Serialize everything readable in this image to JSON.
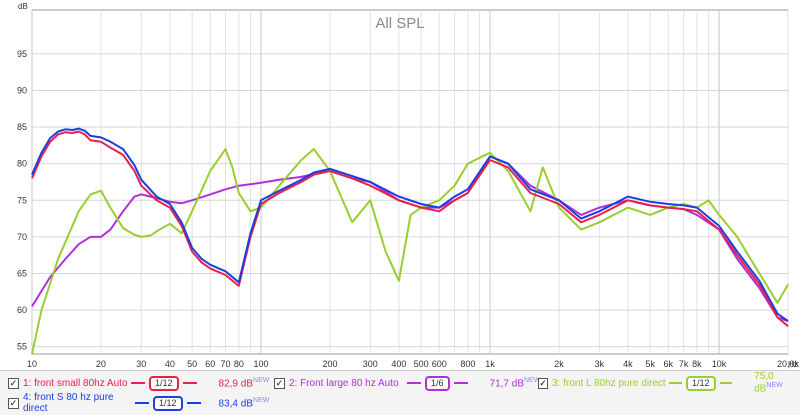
{
  "chart_data": {
    "type": "line",
    "title": "All SPL",
    "ylabel": "dB",
    "xunit": "Hz",
    "xscale": "log",
    "xlim": [
      10,
      20000
    ],
    "ylim": [
      54,
      101
    ],
    "grid": true,
    "xticks": [
      {
        "v": 10,
        "label": "10"
      },
      {
        "v": 20,
        "label": "20"
      },
      {
        "v": 30,
        "label": "30"
      },
      {
        "v": 40,
        "label": "40"
      },
      {
        "v": 50,
        "label": "50"
      },
      {
        "v": 60,
        "label": "60"
      },
      {
        "v": 70,
        "label": "70"
      },
      {
        "v": 80,
        "label": "80"
      },
      {
        "v": 100,
        "label": "100"
      },
      {
        "v": 200,
        "label": "200"
      },
      {
        "v": 300,
        "label": "300"
      },
      {
        "v": 400,
        "label": "400"
      },
      {
        "v": 500,
        "label": "500"
      },
      {
        "v": 600,
        "label": "600"
      },
      {
        "v": 800,
        "label": "800"
      },
      {
        "v": 1000,
        "label": "1k"
      },
      {
        "v": 2000,
        "label": "2k"
      },
      {
        "v": 3000,
        "label": "3k"
      },
      {
        "v": 4000,
        "label": "4k"
      },
      {
        "v": 5000,
        "label": "5k"
      },
      {
        "v": 6000,
        "label": "6k"
      },
      {
        "v": 7000,
        "label": "7k"
      },
      {
        "v": 8000,
        "label": "8k"
      },
      {
        "v": 10000,
        "label": "10k"
      },
      {
        "v": 20000,
        "label": "20,0k"
      }
    ],
    "yticks": [
      55,
      60,
      65,
      70,
      75,
      80,
      85,
      90,
      95
    ],
    "series": [
      {
        "name": "front large 80 hz Auto",
        "color": "#b030d8",
        "x": [
          10,
          12,
          14,
          16,
          18,
          20,
          22,
          25,
          28,
          30,
          35,
          40,
          45,
          50,
          60,
          70,
          80,
          90,
          100,
          120,
          150,
          170,
          200,
          250,
          300,
          400,
          500,
          600,
          700,
          800,
          1000,
          1200,
          1500,
          2000,
          2500,
          3000,
          4000,
          5000,
          6000,
          7000,
          8000,
          10000,
          12000,
          15000,
          18000,
          20000
        ],
        "y": [
          60.5,
          64.5,
          67,
          69,
          70,
          70,
          71,
          73.5,
          75.5,
          75.8,
          75.3,
          74.8,
          74.6,
          75,
          75.8,
          76.5,
          77,
          77.2,
          77.4,
          77.8,
          78.2,
          78.6,
          79,
          78,
          77.5,
          75,
          74,
          74,
          75,
          76,
          81,
          80,
          77,
          75,
          73,
          74,
          75,
          74.3,
          74,
          73.8,
          73,
          71,
          67,
          63,
          59,
          58.5
        ]
      },
      {
        "name": "front L 80hz pure direct",
        "color": "#9acd32",
        "x": [
          10,
          11,
          13,
          16,
          18,
          20,
          22,
          25,
          28,
          30,
          33,
          36,
          40,
          45,
          50,
          60,
          70,
          75,
          80,
          90,
          100,
          120,
          150,
          170,
          200,
          250,
          300,
          350,
          400,
          450,
          500,
          600,
          700,
          800,
          1000,
          1200,
          1500,
          1700,
          2000,
          2500,
          3000,
          4000,
          5000,
          6000,
          7000,
          8000,
          9000,
          10000,
          12000,
          15000,
          18000,
          20000
        ],
        "y": [
          54,
          60,
          67,
          73.5,
          75.8,
          76.3,
          74,
          71.2,
          70.3,
          70,
          70.2,
          71,
          71.8,
          70.5,
          73.5,
          79,
          82,
          79.5,
          76,
          73.5,
          74,
          77,
          80.5,
          82,
          79,
          72,
          75,
          68,
          64,
          73,
          74,
          75,
          77,
          80,
          81.5,
          79,
          73.5,
          79.5,
          74,
          71,
          72,
          74,
          73,
          74,
          74.5,
          74,
          75,
          73,
          70,
          65,
          61,
          63.5
        ]
      },
      {
        "name": "front small 80hz Auto",
        "color": "#e8204a",
        "x": [
          10,
          11,
          12,
          13,
          14,
          15,
          16,
          17,
          18,
          20,
          22,
          25,
          28,
          30,
          35,
          40,
          45,
          50,
          55,
          60,
          70,
          80,
          90,
          100,
          120,
          150,
          170,
          200,
          250,
          300,
          400,
          500,
          600,
          700,
          800,
          1000,
          1200,
          1500,
          2000,
          2500,
          3000,
          4000,
          5000,
          6000,
          7000,
          8000,
          10000,
          12000,
          15000,
          18000,
          20000
        ],
        "y": [
          78,
          81,
          83,
          84,
          84.3,
          84.2,
          84.4,
          84,
          83.2,
          83,
          82.2,
          81.2,
          79,
          77,
          75,
          74,
          71.5,
          68,
          66.5,
          65.7,
          64.8,
          63.3,
          70,
          74.5,
          76,
          77.5,
          78.5,
          79,
          78,
          77,
          75,
          74,
          73.5,
          75,
          76,
          80.5,
          79.5,
          76,
          74.5,
          72,
          73,
          75,
          74.3,
          74,
          73.8,
          73.5,
          71,
          67.5,
          63.5,
          59,
          57.8
        ]
      },
      {
        "name": "front S 80 hz pure direct",
        "color": "#1a40e0",
        "x": [
          10,
          11,
          12,
          13,
          14,
          15,
          16,
          17,
          18,
          20,
          22,
          25,
          28,
          30,
          35,
          40,
          45,
          50,
          55,
          60,
          70,
          80,
          90,
          100,
          120,
          150,
          170,
          200,
          250,
          300,
          400,
          500,
          600,
          700,
          800,
          1000,
          1200,
          1500,
          2000,
          2500,
          3000,
          4000,
          5000,
          6000,
          7000,
          8000,
          10000,
          12000,
          15000,
          18000,
          20000
        ],
        "y": [
          78.5,
          81.5,
          83.5,
          84.4,
          84.7,
          84.6,
          84.8,
          84.5,
          83.8,
          83.6,
          83,
          82,
          79.8,
          77.8,
          75.5,
          74.5,
          72,
          68.5,
          67,
          66.2,
          65.3,
          63.8,
          70.5,
          75,
          76.3,
          77.8,
          78.8,
          79.3,
          78.3,
          77.5,
          75.5,
          74.5,
          74,
          75.5,
          76.5,
          81,
          80,
          76.5,
          75,
          72.5,
          73.5,
          75.5,
          74.8,
          74.5,
          74.3,
          74,
          71.5,
          68,
          64,
          59.5,
          58.5
        ]
      }
    ]
  },
  "legend": [
    {
      "label": "1: front small 80hz Auto",
      "smoothing": "1/12",
      "level": "82,9 dB",
      "badge": "NEW",
      "color": "#e8204a",
      "checked": "✓"
    },
    {
      "label": "2: Front large 80 hz Auto",
      "smoothing": "1/6",
      "level": "71,7 dB",
      "badge": "NEW",
      "color": "#b030d8",
      "checked": "✓"
    },
    {
      "label": "3: front L 80hz pure direct",
      "smoothing": "1/12",
      "level": "75,0 dB",
      "badge": "NEW",
      "color": "#9acd32",
      "checked": "✓"
    },
    {
      "label": "4: front S 80 hz pure direct",
      "smoothing": "1/12",
      "level": "83,4 dB",
      "badge": "NEW",
      "color": "#1a40e0",
      "checked": "✓"
    }
  ]
}
